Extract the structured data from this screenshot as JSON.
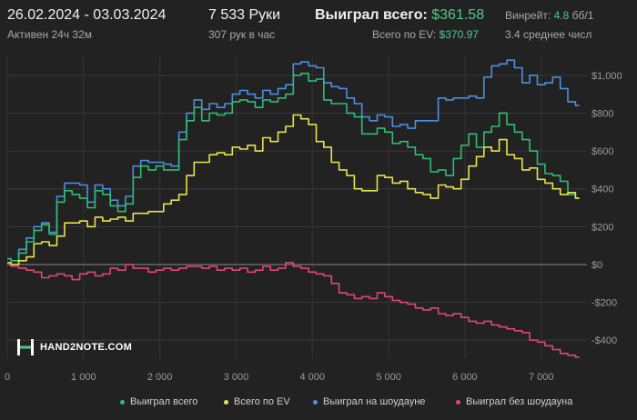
{
  "header": {
    "date_range": "26.02.2024 - 03.03.2024",
    "active_time": "Активен 24ч 32м",
    "hands": "7 533 Руки",
    "hands_per_hour": "307 рук в час",
    "won_total_label": "Выиграл всего:",
    "won_total_value": "$361.58",
    "ev_total_label": "Всего по EV:",
    "ev_total_value": "$370.97",
    "winrate_label": "Винрейт:",
    "winrate_value": "4.8",
    "winrate_unit": "бб/1",
    "avg_label": "3.4 среднее числ"
  },
  "logo": {
    "text": "HAND2NOTE.COM"
  },
  "colors": {
    "background": "#222222",
    "won_total": "#2ebd72",
    "ev_total": "#e8e34a",
    "won_showdown": "#4a90e2",
    "won_no_showdown": "#e0457b",
    "grid": "#3a3a3a",
    "zero_line": "#8a8a8a"
  },
  "chart_data": {
    "type": "line",
    "xlabel": "",
    "ylabel": "",
    "xlim": [
      0,
      7600
    ],
    "ylim": [
      -500,
      1100
    ],
    "x_ticks": [
      0,
      1000,
      2000,
      3000,
      4000,
      5000,
      6000,
      7000
    ],
    "x_tick_labels": [
      "0",
      "1 000",
      "2 000",
      "3 000",
      "4 000",
      "5 000",
      "6 000",
      "7 000"
    ],
    "y_ticks": [
      1000,
      800,
      600,
      400,
      200,
      0,
      -200,
      -400
    ],
    "y_tick_labels": [
      "$1,000",
      "$800",
      "$600",
      "$400",
      "$200",
      "$0",
      "-$200",
      "-$400"
    ],
    "grid": true,
    "legend_position": "bottom",
    "series": [
      {
        "name": "Выиграл всего",
        "color": "#2ebd72",
        "points": [
          [
            0,
            30
          ],
          [
            100,
            20
          ],
          [
            200,
            60
          ],
          [
            300,
            120
          ],
          [
            400,
            180
          ],
          [
            500,
            210
          ],
          [
            600,
            160
          ],
          [
            700,
            330
          ],
          [
            800,
            390
          ],
          [
            900,
            370
          ],
          [
            1000,
            350
          ],
          [
            1100,
            300
          ],
          [
            1200,
            390
          ],
          [
            1300,
            370
          ],
          [
            1400,
            310
          ],
          [
            1500,
            280
          ],
          [
            1600,
            320
          ],
          [
            1700,
            460
          ],
          [
            1800,
            520
          ],
          [
            1900,
            500
          ],
          [
            2000,
            520
          ],
          [
            2100,
            500
          ],
          [
            2200,
            500
          ],
          [
            2300,
            660
          ],
          [
            2400,
            760
          ],
          [
            2500,
            830
          ],
          [
            2600,
            760
          ],
          [
            2700,
            800
          ],
          [
            2800,
            790
          ],
          [
            2900,
            800
          ],
          [
            3000,
            860
          ],
          [
            3100,
            870
          ],
          [
            3200,
            860
          ],
          [
            3300,
            830
          ],
          [
            3400,
            870
          ],
          [
            3500,
            860
          ],
          [
            3600,
            880
          ],
          [
            3700,
            900
          ],
          [
            3800,
            1000
          ],
          [
            3900,
            1010
          ],
          [
            4000,
            970
          ],
          [
            4100,
            980
          ],
          [
            4200,
            870
          ],
          [
            4300,
            850
          ],
          [
            4400,
            850
          ],
          [
            4500,
            800
          ],
          [
            4600,
            780
          ],
          [
            4700,
            690
          ],
          [
            4800,
            690
          ],
          [
            4900,
            720
          ],
          [
            5000,
            700
          ],
          [
            5100,
            640
          ],
          [
            5200,
            650
          ],
          [
            5300,
            620
          ],
          [
            5400,
            580
          ],
          [
            5500,
            560
          ],
          [
            5600,
            490
          ],
          [
            5700,
            500
          ],
          [
            5800,
            470
          ],
          [
            5900,
            560
          ],
          [
            6000,
            630
          ],
          [
            6100,
            690
          ],
          [
            6200,
            620
          ],
          [
            6300,
            700
          ],
          [
            6400,
            730
          ],
          [
            6500,
            800
          ],
          [
            6600,
            740
          ],
          [
            6700,
            700
          ],
          [
            6800,
            660
          ],
          [
            6900,
            600
          ],
          [
            7000,
            530
          ],
          [
            7100,
            480
          ],
          [
            7200,
            470
          ],
          [
            7300,
            440
          ],
          [
            7400,
            370
          ],
          [
            7500,
            350
          ]
        ]
      },
      {
        "name": "Всего по EV",
        "color": "#e8e34a",
        "points": [
          [
            0,
            10
          ],
          [
            100,
            0
          ],
          [
            200,
            20
          ],
          [
            300,
            40
          ],
          [
            400,
            110
          ],
          [
            500,
            120
          ],
          [
            600,
            100
          ],
          [
            700,
            150
          ],
          [
            800,
            220
          ],
          [
            900,
            220
          ],
          [
            1000,
            230
          ],
          [
            1100,
            200
          ],
          [
            1200,
            250
          ],
          [
            1300,
            230
          ],
          [
            1400,
            240
          ],
          [
            1500,
            250
          ],
          [
            1600,
            230
          ],
          [
            1700,
            270
          ],
          [
            1800,
            270
          ],
          [
            1900,
            280
          ],
          [
            2000,
            280
          ],
          [
            2100,
            320
          ],
          [
            2200,
            340
          ],
          [
            2300,
            370
          ],
          [
            2400,
            470
          ],
          [
            2500,
            540
          ],
          [
            2600,
            540
          ],
          [
            2700,
            580
          ],
          [
            2800,
            590
          ],
          [
            2900,
            580
          ],
          [
            3000,
            620
          ],
          [
            3100,
            610
          ],
          [
            3200,
            630
          ],
          [
            3300,
            600
          ],
          [
            3400,
            670
          ],
          [
            3500,
            650
          ],
          [
            3600,
            700
          ],
          [
            3700,
            730
          ],
          [
            3800,
            790
          ],
          [
            3900,
            770
          ],
          [
            4000,
            740
          ],
          [
            4100,
            650
          ],
          [
            4200,
            620
          ],
          [
            4300,
            540
          ],
          [
            4400,
            500
          ],
          [
            4500,
            470
          ],
          [
            4600,
            400
          ],
          [
            4700,
            390
          ],
          [
            4800,
            390
          ],
          [
            4900,
            470
          ],
          [
            5000,
            460
          ],
          [
            5100,
            430
          ],
          [
            5200,
            440
          ],
          [
            5300,
            400
          ],
          [
            5400,
            380
          ],
          [
            5500,
            370
          ],
          [
            5600,
            350
          ],
          [
            5700,
            420
          ],
          [
            5800,
            410
          ],
          [
            5900,
            400
          ],
          [
            6000,
            450
          ],
          [
            6100,
            520
          ],
          [
            6200,
            570
          ],
          [
            6300,
            620
          ],
          [
            6400,
            600
          ],
          [
            6500,
            660
          ],
          [
            6600,
            580
          ],
          [
            6700,
            560
          ],
          [
            6800,
            500
          ],
          [
            6900,
            510
          ],
          [
            7000,
            450
          ],
          [
            7100,
            430
          ],
          [
            7200,
            400
          ],
          [
            7300,
            370
          ],
          [
            7400,
            380
          ],
          [
            7500,
            350
          ]
        ]
      },
      {
        "name": "Выиграл на шоудауне",
        "color": "#4a90e2",
        "points": [
          [
            0,
            30
          ],
          [
            100,
            20
          ],
          [
            200,
            80
          ],
          [
            300,
            140
          ],
          [
            400,
            200
          ],
          [
            500,
            220
          ],
          [
            600,
            170
          ],
          [
            700,
            360
          ],
          [
            800,
            430
          ],
          [
            900,
            430
          ],
          [
            1000,
            420
          ],
          [
            1100,
            330
          ],
          [
            1200,
            420
          ],
          [
            1300,
            400
          ],
          [
            1400,
            340
          ],
          [
            1500,
            310
          ],
          [
            1600,
            360
          ],
          [
            1700,
            520
          ],
          [
            1800,
            550
          ],
          [
            1900,
            540
          ],
          [
            2000,
            540
          ],
          [
            2100,
            530
          ],
          [
            2200,
            520
          ],
          [
            2300,
            700
          ],
          [
            2400,
            800
          ],
          [
            2500,
            870
          ],
          [
            2600,
            820
          ],
          [
            2700,
            850
          ],
          [
            2800,
            830
          ],
          [
            2900,
            850
          ],
          [
            3000,
            900
          ],
          [
            3100,
            920
          ],
          [
            3200,
            900
          ],
          [
            3300,
            880
          ],
          [
            3400,
            920
          ],
          [
            3500,
            900
          ],
          [
            3600,
            930
          ],
          [
            3700,
            950
          ],
          [
            3800,
            1060
          ],
          [
            3900,
            1070
          ],
          [
            4000,
            1050
          ],
          [
            4100,
            1040
          ],
          [
            4200,
            960
          ],
          [
            4300,
            940
          ],
          [
            4400,
            930
          ],
          [
            4500,
            880
          ],
          [
            4600,
            850
          ],
          [
            4700,
            780
          ],
          [
            4800,
            760
          ],
          [
            4900,
            790
          ],
          [
            5000,
            780
          ],
          [
            5100,
            730
          ],
          [
            5200,
            740
          ],
          [
            5300,
            720
          ],
          [
            5400,
            760
          ],
          [
            5500,
            760
          ],
          [
            5600,
            760
          ],
          [
            5700,
            880
          ],
          [
            5800,
            870
          ],
          [
            5900,
            880
          ],
          [
            6000,
            880
          ],
          [
            6100,
            890
          ],
          [
            6200,
            880
          ],
          [
            6300,
            990
          ],
          [
            6400,
            1050
          ],
          [
            6500,
            1060
          ],
          [
            6600,
            1080
          ],
          [
            6700,
            1040
          ],
          [
            6800,
            960
          ],
          [
            6900,
            1000
          ],
          [
            7000,
            950
          ],
          [
            7100,
            960
          ],
          [
            7200,
            990
          ],
          [
            7300,
            930
          ],
          [
            7400,
            860
          ],
          [
            7500,
            840
          ]
        ]
      },
      {
        "name": "Выиграл без шоудауна",
        "color": "#e0457b",
        "points": [
          [
            0,
            0
          ],
          [
            100,
            -10
          ],
          [
            200,
            -20
          ],
          [
            300,
            -30
          ],
          [
            400,
            -40
          ],
          [
            500,
            -70
          ],
          [
            600,
            -60
          ],
          [
            700,
            -50
          ],
          [
            800,
            -60
          ],
          [
            900,
            -80
          ],
          [
            1000,
            -50
          ],
          [
            1100,
            -40
          ],
          [
            1200,
            -60
          ],
          [
            1300,
            -50
          ],
          [
            1400,
            -20
          ],
          [
            1500,
            -30
          ],
          [
            1600,
            0
          ],
          [
            1700,
            -20
          ],
          [
            1800,
            -20
          ],
          [
            1900,
            -40
          ],
          [
            2000,
            -30
          ],
          [
            2100,
            -20
          ],
          [
            2200,
            -30
          ],
          [
            2300,
            -20
          ],
          [
            2400,
            -10
          ],
          [
            2500,
            -10
          ],
          [
            2600,
            -20
          ],
          [
            2700,
            -10
          ],
          [
            2800,
            -30
          ],
          [
            2900,
            -20
          ],
          [
            3000,
            -30
          ],
          [
            3100,
            -20
          ],
          [
            3200,
            -40
          ],
          [
            3300,
            -30
          ],
          [
            3400,
            -10
          ],
          [
            3500,
            -30
          ],
          [
            3600,
            -20
          ],
          [
            3700,
            10
          ],
          [
            3800,
            -10
          ],
          [
            3900,
            -20
          ],
          [
            4000,
            -40
          ],
          [
            4100,
            -50
          ],
          [
            4200,
            -60
          ],
          [
            4300,
            -100
          ],
          [
            4400,
            -150
          ],
          [
            4500,
            -160
          ],
          [
            4600,
            -180
          ],
          [
            4700,
            -170
          ],
          [
            4800,
            -180
          ],
          [
            4900,
            -150
          ],
          [
            5000,
            -170
          ],
          [
            5100,
            -190
          ],
          [
            5200,
            -200
          ],
          [
            5300,
            -210
          ],
          [
            5400,
            -230
          ],
          [
            5500,
            -240
          ],
          [
            5600,
            -230
          ],
          [
            5700,
            -260
          ],
          [
            5800,
            -270
          ],
          [
            5900,
            -260
          ],
          [
            6000,
            -280
          ],
          [
            6100,
            -300
          ],
          [
            6200,
            -310
          ],
          [
            6300,
            -300
          ],
          [
            6400,
            -320
          ],
          [
            6500,
            -330
          ],
          [
            6600,
            -340
          ],
          [
            6700,
            -350
          ],
          [
            6800,
            -360
          ],
          [
            6900,
            -400
          ],
          [
            7000,
            -410
          ],
          [
            7100,
            -430
          ],
          [
            7200,
            -450
          ],
          [
            7300,
            -470
          ],
          [
            7400,
            -480
          ],
          [
            7500,
            -490
          ]
        ]
      }
    ]
  }
}
